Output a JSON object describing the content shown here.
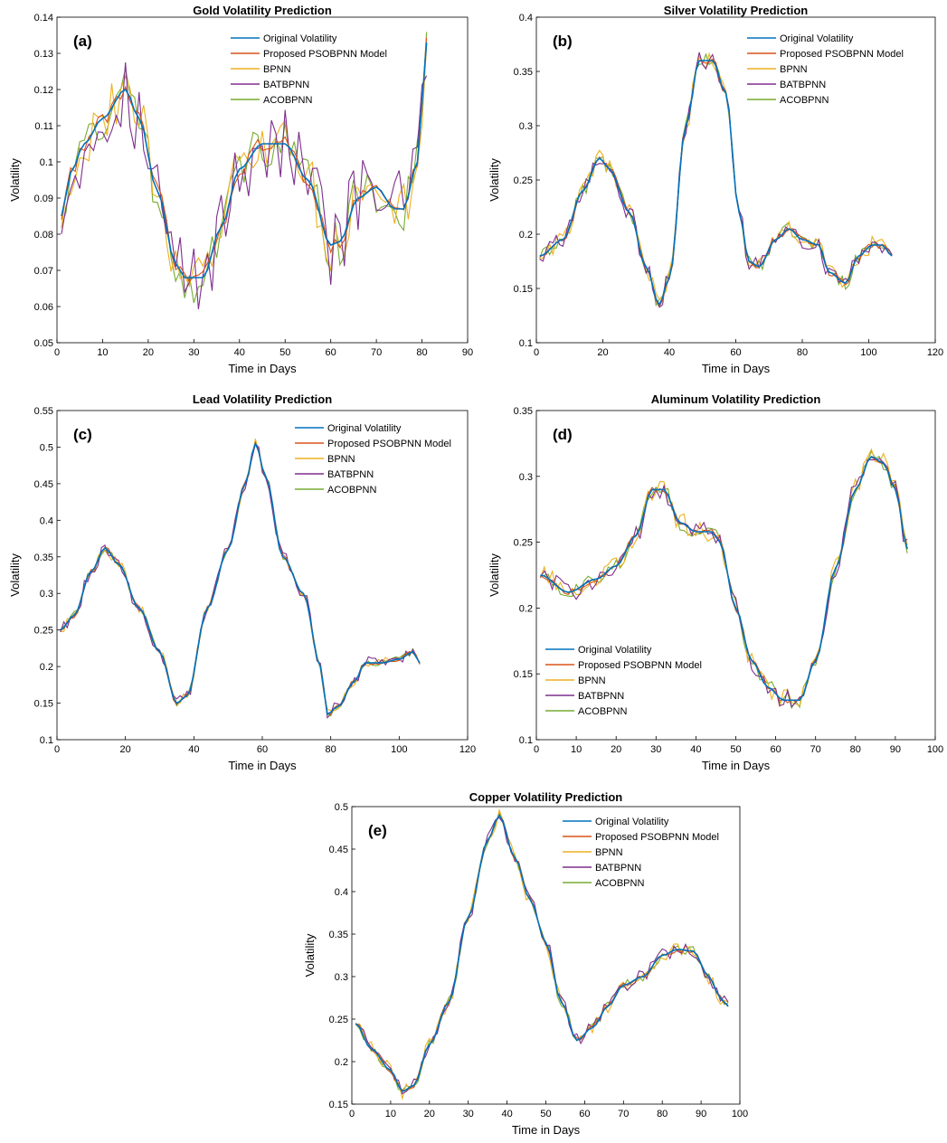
{
  "chart_data": [
    {
      "type": "line",
      "panel_label": "(a)",
      "title": "Gold Volatility Prediction",
      "xlabel": "Time in Days",
      "ylabel": "Volatility",
      "xlim": [
        0,
        90
      ],
      "ylim": [
        0.05,
        0.14
      ],
      "xticks": [
        0,
        10,
        20,
        30,
        40,
        50,
        60,
        70,
        80,
        90
      ],
      "yticks": [
        0.05,
        0.06,
        0.07,
        0.08,
        0.09,
        0.1,
        0.11,
        0.12,
        0.13,
        0.14
      ],
      "legend_position": "top-right",
      "grid": false,
      "x_end": 81,
      "curve": [
        [
          1,
          0.085
        ],
        [
          3,
          0.097
        ],
        [
          6,
          0.105
        ],
        [
          10,
          0.112
        ],
        [
          15,
          0.12
        ],
        [
          18,
          0.112
        ],
        [
          22,
          0.092
        ],
        [
          26,
          0.072
        ],
        [
          28,
          0.068
        ],
        [
          32,
          0.068
        ],
        [
          36,
          0.082
        ],
        [
          40,
          0.098
        ],
        [
          45,
          0.105
        ],
        [
          50,
          0.105
        ],
        [
          55,
          0.095
        ],
        [
          60,
          0.077
        ],
        [
          62,
          0.078
        ],
        [
          66,
          0.09
        ],
        [
          70,
          0.093
        ],
        [
          74,
          0.087
        ],
        [
          76,
          0.087
        ],
        [
          79,
          0.1
        ],
        [
          81,
          0.133
        ]
      ],
      "series": [
        {
          "name": "Original Volatility",
          "noise": 0,
          "color": "#0072BD"
        },
        {
          "name": "Proposed PSOBPNN Model",
          "noise": 0.002,
          "color": "#D95319"
        },
        {
          "name": "BPNN",
          "noise": 0.007,
          "color": "#EDB120"
        },
        {
          "name": "BATBPNN",
          "noise": 0.011,
          "color": "#7E2F8E"
        },
        {
          "name": "ACOBPNN",
          "noise": 0.007,
          "color": "#77AC30"
        }
      ]
    },
    {
      "type": "line",
      "panel_label": "(b)",
      "title": "Silver Volatility Prediction",
      "xlabel": "Time in Days",
      "ylabel": "Volatility",
      "xlim": [
        0,
        120
      ],
      "ylim": [
        0.1,
        0.4
      ],
      "xticks": [
        0,
        20,
        40,
        60,
        80,
        100,
        120
      ],
      "yticks": [
        0.1,
        0.15,
        0.2,
        0.25,
        0.3,
        0.35,
        0.4
      ],
      "legend_position": "top-right",
      "grid": false,
      "x_end": 107,
      "curve": [
        [
          1,
          0.18
        ],
        [
          8,
          0.195
        ],
        [
          14,
          0.24
        ],
        [
          19,
          0.27
        ],
        [
          22,
          0.26
        ],
        [
          28,
          0.22
        ],
        [
          33,
          0.17
        ],
        [
          37,
          0.135
        ],
        [
          40,
          0.16
        ],
        [
          45,
          0.3
        ],
        [
          49,
          0.36
        ],
        [
          53,
          0.36
        ],
        [
          57,
          0.33
        ],
        [
          61,
          0.22
        ],
        [
          64,
          0.175
        ],
        [
          67,
          0.17
        ],
        [
          72,
          0.195
        ],
        [
          76,
          0.205
        ],
        [
          80,
          0.195
        ],
        [
          85,
          0.19
        ],
        [
          88,
          0.165
        ],
        [
          93,
          0.155
        ],
        [
          97,
          0.18
        ],
        [
          101,
          0.19
        ],
        [
          104,
          0.19
        ],
        [
          107,
          0.18
        ]
      ],
      "series": [
        {
          "name": "Original Volatility",
          "noise": 0,
          "color": "#0072BD"
        },
        {
          "name": "Proposed PSOBPNN Model",
          "noise": 0.003,
          "color": "#D95319"
        },
        {
          "name": "BPNN",
          "noise": 0.008,
          "color": "#EDB120"
        },
        {
          "name": "BATBPNN",
          "noise": 0.008,
          "color": "#7E2F8E"
        },
        {
          "name": "ACOBPNN",
          "noise": 0.006,
          "color": "#77AC30"
        }
      ]
    },
    {
      "type": "line",
      "panel_label": "(c)",
      "title": "Lead Volatility Prediction",
      "xlabel": "Time in Days",
      "ylabel": "Volatility",
      "xlim": [
        0,
        120
      ],
      "ylim": [
        0.1,
        0.55
      ],
      "xticks": [
        0,
        20,
        40,
        60,
        80,
        100,
        120
      ],
      "yticks": [
        0.1,
        0.15,
        0.2,
        0.25,
        0.3,
        0.35,
        0.4,
        0.45,
        0.5,
        0.55
      ],
      "legend_position": "top-right",
      "grid": false,
      "x_end": 106,
      "curve": [
        [
          1,
          0.25
        ],
        [
          5,
          0.27
        ],
        [
          10,
          0.33
        ],
        [
          14,
          0.362
        ],
        [
          18,
          0.34
        ],
        [
          24,
          0.28
        ],
        [
          30,
          0.22
        ],
        [
          35,
          0.15
        ],
        [
          38,
          0.16
        ],
        [
          44,
          0.28
        ],
        [
          50,
          0.36
        ],
        [
          55,
          0.45
        ],
        [
          58,
          0.505
        ],
        [
          61,
          0.46
        ],
        [
          66,
          0.35
        ],
        [
          72,
          0.3
        ],
        [
          77,
          0.2
        ],
        [
          79,
          0.135
        ],
        [
          82,
          0.145
        ],
        [
          87,
          0.18
        ],
        [
          90,
          0.205
        ],
        [
          95,
          0.205
        ],
        [
          100,
          0.21
        ],
        [
          104,
          0.22
        ],
        [
          106,
          0.205
        ]
      ],
      "series": [
        {
          "name": "Original Volatility",
          "noise": 0,
          "color": "#0072BD"
        },
        {
          "name": "Proposed PSOBPNN Model",
          "noise": 0.003,
          "color": "#D95319"
        },
        {
          "name": "BPNN",
          "noise": 0.007,
          "color": "#EDB120"
        },
        {
          "name": "BATBPNN",
          "noise": 0.009,
          "color": "#7E2F8E"
        },
        {
          "name": "ACOBPNN",
          "noise": 0.005,
          "color": "#77AC30"
        }
      ]
    },
    {
      "type": "line",
      "panel_label": "(d)",
      "title": "Aluminum Volatility Prediction",
      "xlabel": "Time in Days",
      "ylabel": "Volatility",
      "xlim": [
        0,
        100
      ],
      "ylim": [
        0.1,
        0.35
      ],
      "xticks": [
        0,
        10,
        20,
        30,
        40,
        50,
        60,
        70,
        80,
        90,
        100
      ],
      "yticks": [
        0.1,
        0.15,
        0.2,
        0.25,
        0.3,
        0.35
      ],
      "legend_position": "bottom-left",
      "grid": false,
      "x_end": 93,
      "curve": [
        [
          1,
          0.225
        ],
        [
          8,
          0.212
        ],
        [
          15,
          0.222
        ],
        [
          20,
          0.232
        ],
        [
          25,
          0.255
        ],
        [
          29,
          0.29
        ],
        [
          32,
          0.29
        ],
        [
          36,
          0.265
        ],
        [
          40,
          0.258
        ],
        [
          44,
          0.258
        ],
        [
          46,
          0.25
        ],
        [
          50,
          0.2
        ],
        [
          54,
          0.16
        ],
        [
          58,
          0.14
        ],
        [
          62,
          0.13
        ],
        [
          66,
          0.13
        ],
        [
          70,
          0.16
        ],
        [
          75,
          0.23
        ],
        [
          80,
          0.29
        ],
        [
          84,
          0.315
        ],
        [
          87,
          0.31
        ],
        [
          90,
          0.29
        ],
        [
          93,
          0.245
        ]
      ],
      "series": [
        {
          "name": "Original Volatility",
          "noise": 0,
          "color": "#0072BD"
        },
        {
          "name": "Proposed PSOBPNN Model",
          "noise": 0.002,
          "color": "#D95319"
        },
        {
          "name": "BPNN",
          "noise": 0.008,
          "color": "#EDB120"
        },
        {
          "name": "BATBPNN",
          "noise": 0.008,
          "color": "#7E2F8E"
        },
        {
          "name": "ACOBPNN",
          "noise": 0.006,
          "color": "#77AC30"
        }
      ]
    },
    {
      "type": "line",
      "panel_label": "(e)",
      "title": "Copper Volatility Prediction",
      "xlabel": "Time in Days",
      "ylabel": "Volatility",
      "xlim": [
        0,
        100
      ],
      "ylim": [
        0.15,
        0.5
      ],
      "xticks": [
        0,
        10,
        20,
        30,
        40,
        50,
        60,
        70,
        80,
        90,
        100
      ],
      "yticks": [
        0.15,
        0.2,
        0.25,
        0.3,
        0.35,
        0.4,
        0.45,
        0.5
      ],
      "legend_position": "top-right",
      "grid": false,
      "x_end": 97,
      "curve": [
        [
          1,
          0.245
        ],
        [
          5,
          0.215
        ],
        [
          10,
          0.19
        ],
        [
          13,
          0.165
        ],
        [
          16,
          0.172
        ],
        [
          20,
          0.22
        ],
        [
          25,
          0.27
        ],
        [
          30,
          0.37
        ],
        [
          35,
          0.46
        ],
        [
          38,
          0.49
        ],
        [
          42,
          0.44
        ],
        [
          46,
          0.39
        ],
        [
          50,
          0.34
        ],
        [
          54,
          0.27
        ],
        [
          58,
          0.225
        ],
        [
          62,
          0.24
        ],
        [
          66,
          0.265
        ],
        [
          70,
          0.29
        ],
        [
          75,
          0.3
        ],
        [
          80,
          0.325
        ],
        [
          84,
          0.332
        ],
        [
          88,
          0.33
        ],
        [
          92,
          0.3
        ],
        [
          95,
          0.275
        ],
        [
          97,
          0.265
        ]
      ],
      "series": [
        {
          "name": "Original Volatility",
          "noise": 0,
          "color": "#0072BD"
        },
        {
          "name": "Proposed PSOBPNN Model",
          "noise": 0.003,
          "color": "#D95319"
        },
        {
          "name": "BPNN",
          "noise": 0.009,
          "color": "#EDB120"
        },
        {
          "name": "BATBPNN",
          "noise": 0.008,
          "color": "#7E2F8E"
        },
        {
          "name": "ACOBPNN",
          "noise": 0.006,
          "color": "#77AC30"
        }
      ]
    }
  ]
}
